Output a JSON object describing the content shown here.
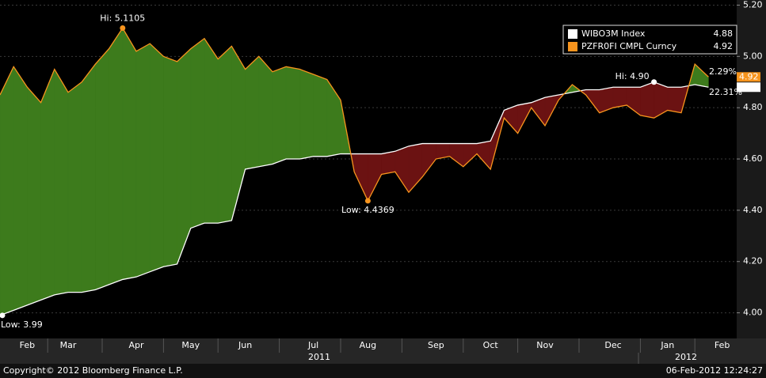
{
  "chart_data": {
    "type": "line",
    "categories": [
      null,
      null,
      "Feb",
      null,
      null,
      "Mar",
      null,
      null,
      null,
      null,
      "Apr",
      null,
      null,
      null,
      "May",
      null,
      null,
      null,
      "Jun",
      null,
      null,
      null,
      null,
      "Jul",
      null,
      null,
      null,
      "Aug",
      null,
      null,
      null,
      null,
      "Sep",
      null,
      null,
      null,
      "Oct",
      null,
      null,
      null,
      "Nov",
      null,
      null,
      null,
      null,
      "Dec",
      null,
      null,
      null,
      "Jan",
      null,
      null,
      null,
      "Feb"
    ],
    "year_labels": [
      "2011",
      "2012"
    ],
    "series": [
      {
        "name": "WIBO3M Index",
        "color": "#ffffff",
        "high_label": "Hi: 4.90",
        "low_label": "Low: 3.99",
        "values": [
          3.99,
          4.01,
          4.03,
          4.05,
          4.07,
          4.08,
          4.08,
          4.09,
          4.11,
          4.13,
          4.14,
          4.16,
          4.18,
          4.19,
          4.33,
          4.35,
          4.35,
          4.36,
          4.56,
          4.57,
          4.58,
          4.6,
          4.6,
          4.61,
          4.61,
          4.62,
          4.62,
          4.62,
          4.62,
          4.63,
          4.65,
          4.66,
          4.66,
          4.66,
          4.66,
          4.66,
          4.67,
          4.79,
          4.81,
          4.82,
          4.84,
          4.85,
          4.86,
          4.87,
          4.87,
          4.88,
          4.88,
          4.88,
          4.9,
          4.88,
          4.88,
          4.89,
          4.88,
          null
        ]
      },
      {
        "name": "PZFR0FI CMPL Curncy",
        "color": "#f7941d",
        "high_label": "Hi: 5.1105",
        "low_label": "Low: 4.4369",
        "values": [
          4.85,
          4.96,
          4.88,
          4.82,
          4.95,
          4.86,
          4.9,
          4.97,
          5.03,
          5.1105,
          5.02,
          5.05,
          5.0,
          4.98,
          5.03,
          5.07,
          4.99,
          5.04,
          4.95,
          5.0,
          4.94,
          4.96,
          4.95,
          4.93,
          4.91,
          4.83,
          4.55,
          4.4369,
          4.54,
          4.55,
          4.47,
          4.53,
          4.6,
          4.61,
          4.57,
          4.62,
          4.56,
          4.76,
          4.7,
          4.8,
          4.73,
          4.83,
          4.89,
          4.85,
          4.78,
          4.8,
          4.81,
          4.77,
          4.76,
          4.79,
          4.78,
          4.97,
          4.92,
          null
        ]
      }
    ],
    "spread_labels": [
      "2.29%",
      "22.31%"
    ],
    "fill_colors": {
      "above": "#3d7b1c",
      "below": "#6b1212"
    },
    "ylim": [
      3.9,
      5.22
    ],
    "yticks": [
      {
        "value": 4,
        "label": "4.00"
      },
      {
        "value": 4.2,
        "label": "4.20"
      },
      {
        "value": 4.4,
        "label": "4.40"
      },
      {
        "value": 4.6,
        "label": "4.60"
      },
      {
        "value": 4.8,
        "label": "4.80"
      },
      {
        "value": 5,
        "label": "5.00"
      },
      {
        "value": 5.2,
        "label": "5.20"
      }
    ],
    "grid": true
  },
  "footer": {
    "copyright": "Copyright© 2012 Bloomberg Finance L.P.",
    "timestamp": "06-Feb-2012 12:24:27"
  }
}
